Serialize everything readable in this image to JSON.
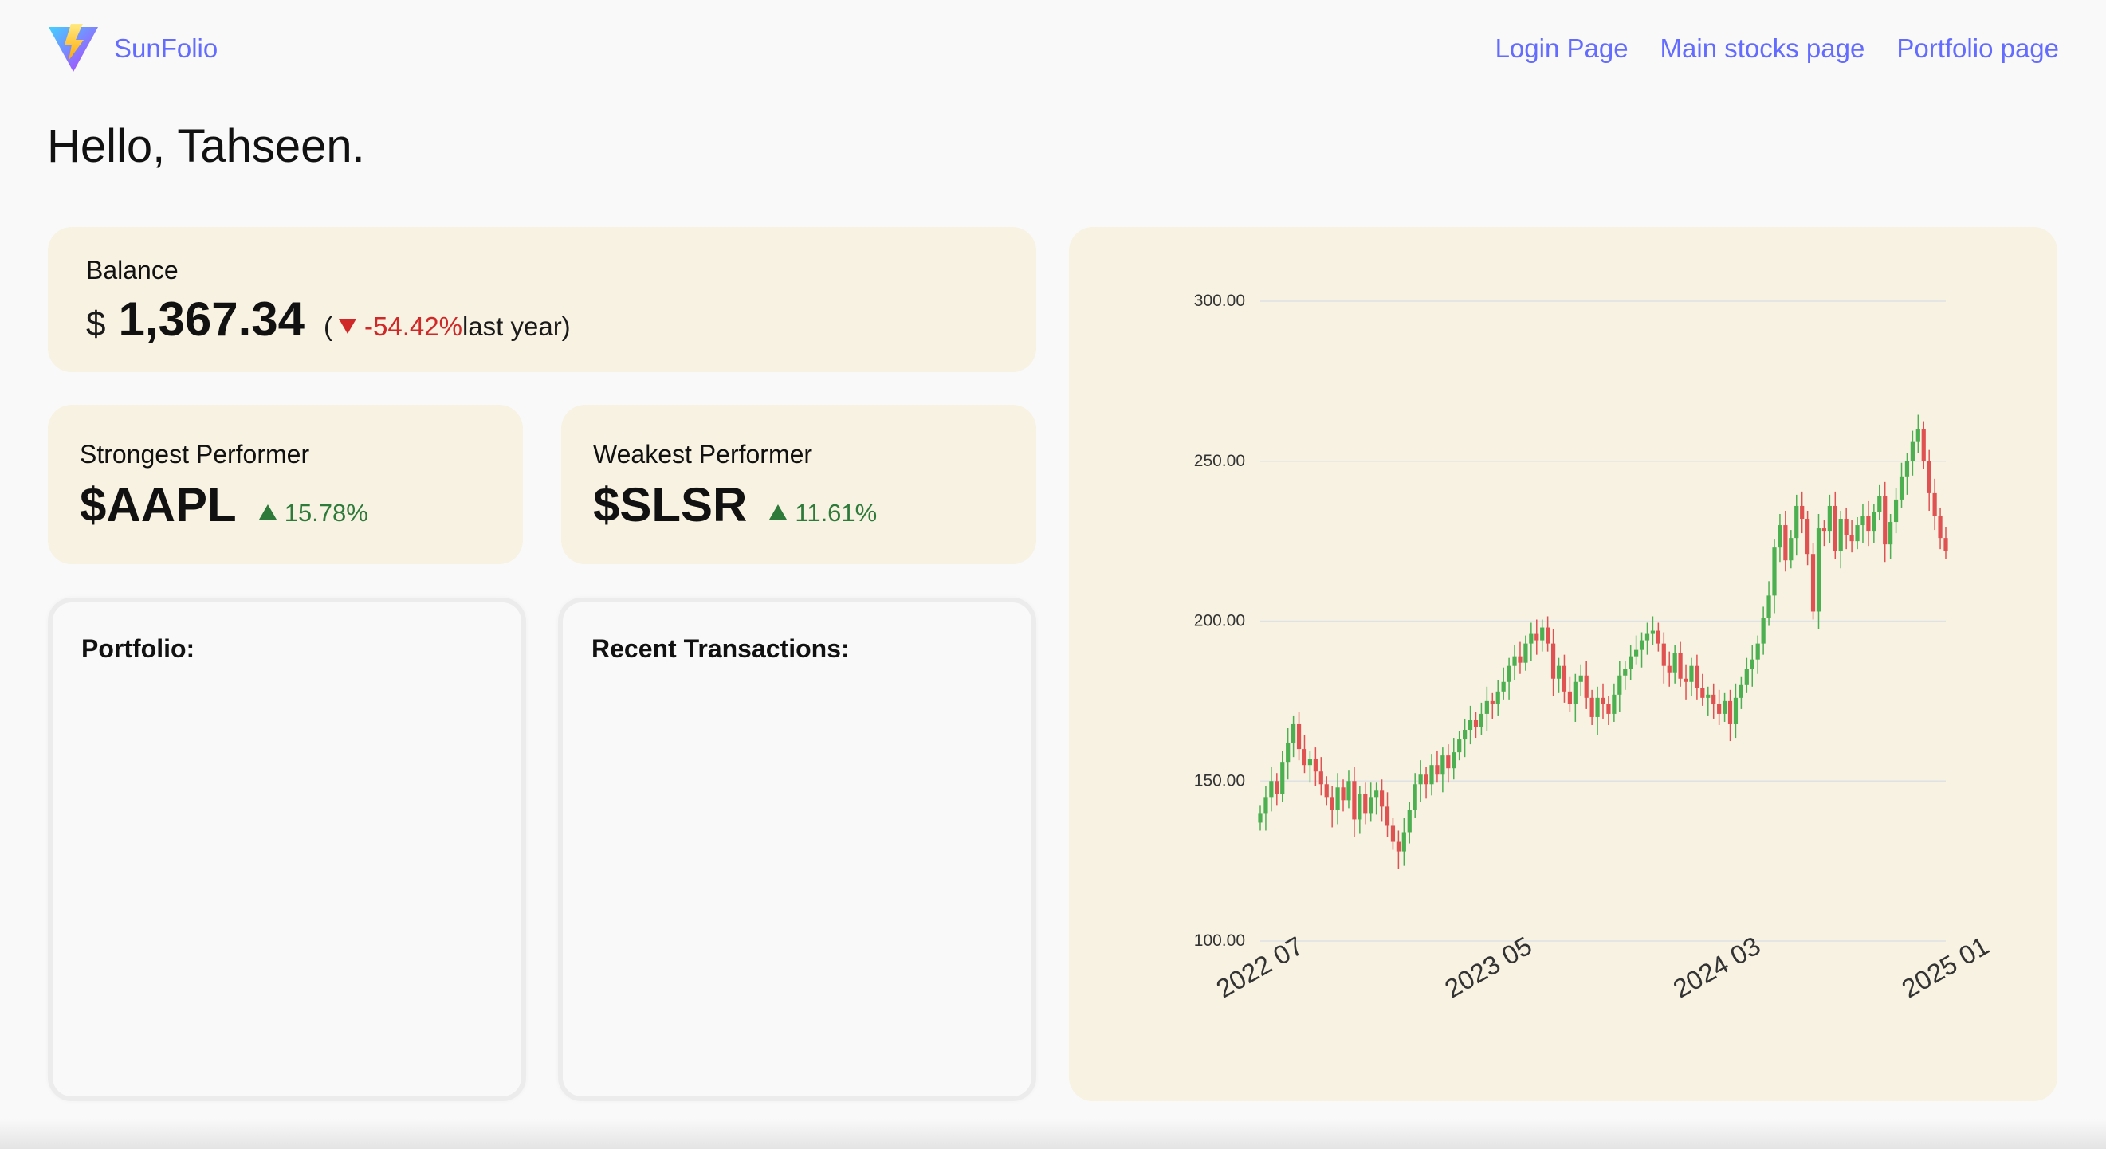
{
  "nav": {
    "brand": "SunFolio",
    "links": [
      "Login Page",
      "Main stocks page",
      "Portfolio page"
    ]
  },
  "greeting": "Hello, Tahseen.",
  "balance": {
    "label": "Balance",
    "currency": "$",
    "value": "1,367.34",
    "open_paren": "(",
    "change": "-54.42%",
    "period": "last year)"
  },
  "strongest": {
    "label": "Strongest Performer",
    "ticker": "$AAPL",
    "change": "15.78%"
  },
  "weakest": {
    "label": "Weakest Performer",
    "ticker": "$SLSR",
    "change": "11.61%"
  },
  "portfolio": {
    "title": "Portfolio:"
  },
  "transactions": {
    "title": "Recent Transactions:"
  },
  "colors": {
    "accent": "#646cff",
    "card_bg": "#f7f2e1",
    "down": "#d02828",
    "up": "#2d7a3a",
    "candle_up": "#4caf50",
    "candle_down": "#e05252"
  },
  "icons": {
    "brand": "vite-logo-icon",
    "down": "triangle-down-icon",
    "up": "triangle-up-icon"
  },
  "chart_data": {
    "type": "candlestick",
    "title": "",
    "xlabel": "",
    "ylabel": "",
    "ylim": [
      100,
      300
    ],
    "yticks": [
      "100.00",
      "150.00",
      "200.00",
      "250.00",
      "300.00"
    ],
    "xticks": [
      "2022 07",
      "2023 05",
      "2024 03",
      "2025 01"
    ],
    "grid": true,
    "x_range": [
      "2022-07",
      "2025-01"
    ],
    "series": [
      {
        "close": [
          140,
          145,
          150,
          146,
          156,
          162,
          168,
          160,
          155,
          157,
          153,
          149,
          145,
          141,
          148,
          144,
          150,
          138,
          146,
          140,
          145,
          147,
          142,
          136,
          131,
          128,
          134,
          141,
          149,
          152,
          149,
          155,
          152,
          158,
          154,
          159,
          163,
          166,
          169,
          167,
          171,
          175,
          174,
          178,
          181,
          186,
          189,
          187,
          193,
          196,
          194,
          198,
          193,
          182,
          186,
          178,
          174,
          181,
          183,
          176,
          170,
          176,
          174,
          171,
          177,
          183,
          185,
          189,
          191,
          194,
          196,
          197,
          193,
          186,
          184,
          190,
          182,
          181,
          186,
          179,
          176,
          177,
          174,
          171,
          175,
          168,
          176,
          180,
          185,
          188,
          193,
          201,
          208,
          223,
          230,
          219,
          226,
          236,
          232,
          221,
          203,
          229,
          228,
          236,
          222,
          232,
          227,
          225,
          230,
          233,
          228,
          234,
          239,
          224,
          231,
          238,
          245,
          250,
          256,
          260,
          250,
          240,
          233,
          226,
          222
        ],
        "hover": false
      }
    ]
  }
}
